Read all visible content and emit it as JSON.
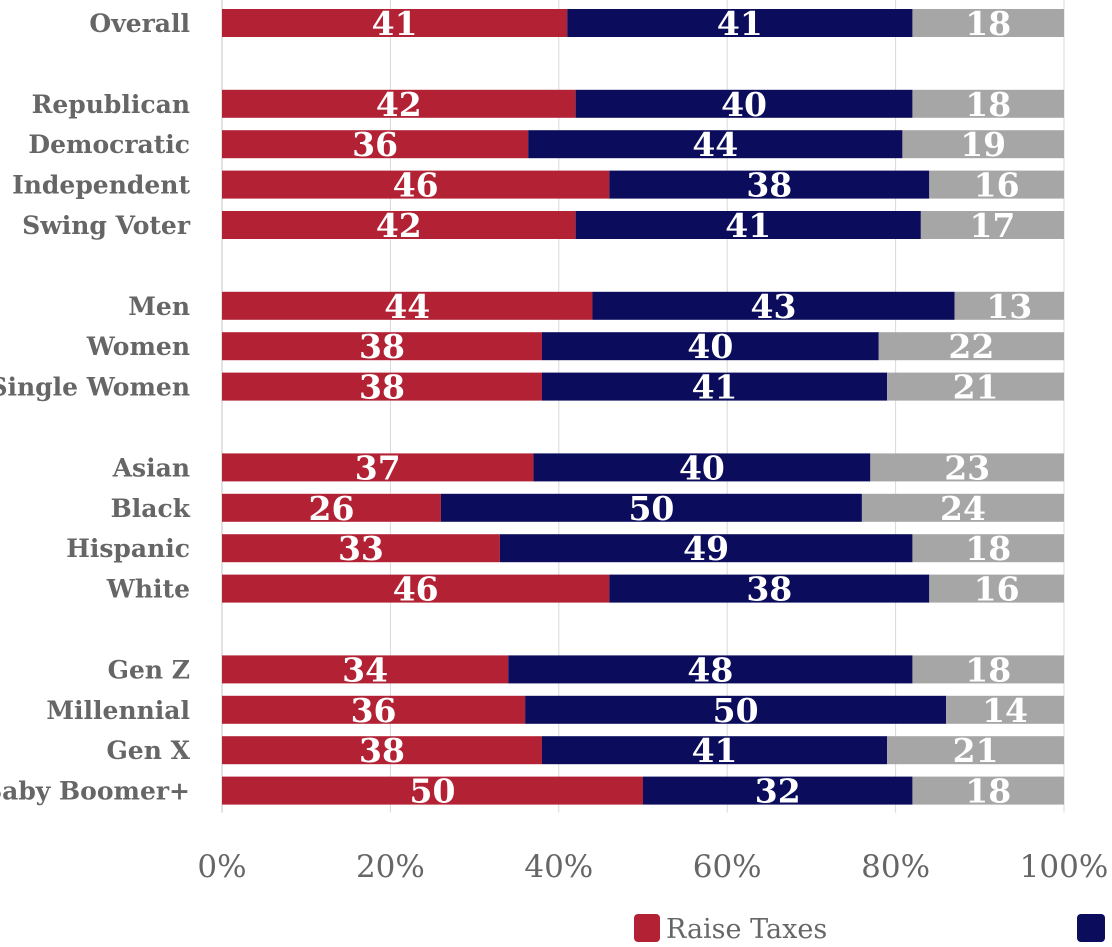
{
  "chart_data": {
    "type": "bar",
    "orientation": "horizontal",
    "stacked": true,
    "percent_stacked": true,
    "categories": [
      "Overall",
      "",
      "Republican",
      "Democratic",
      "Independent",
      "Swing Voter",
      "",
      "Men",
      "Women",
      "Single Women",
      "",
      "Asian",
      "Black",
      "Hispanic",
      "White",
      "",
      "Gen Z",
      "Millennial",
      "Gen X",
      "Baby Boomer+"
    ],
    "series": [
      {
        "name": "Raise Taxes",
        "color": "#b22234",
        "values": [
          41,
          null,
          42,
          36,
          46,
          42,
          null,
          44,
          38,
          38,
          null,
          37,
          26,
          33,
          46,
          null,
          34,
          36,
          38,
          50
        ]
      },
      {
        "color": "#0b0c5c",
        "values": [
          41,
          null,
          40,
          44,
          38,
          41,
          null,
          43,
          40,
          41,
          null,
          40,
          50,
          49,
          38,
          null,
          48,
          50,
          41,
          32
        ]
      },
      {
        "color": "#a6a6a6",
        "values": [
          18,
          null,
          18,
          19,
          16,
          17,
          null,
          13,
          22,
          21,
          null,
          23,
          24,
          18,
          16,
          null,
          18,
          14,
          21,
          18
        ]
      }
    ],
    "x_ticks": [
      "0%",
      "20%",
      "40%",
      "60%",
      "80%",
      "100%"
    ],
    "xlim": [
      0,
      100
    ],
    "grid": true,
    "legend_position": "bottom"
  }
}
